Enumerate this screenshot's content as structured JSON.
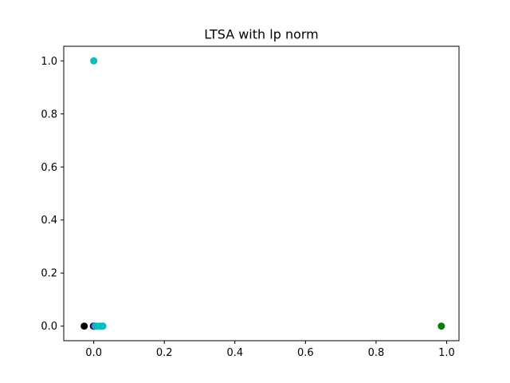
{
  "chart_data": {
    "type": "scatter",
    "title": "LTSA with lp norm",
    "xlabel": "",
    "ylabel": "",
    "xlim": [
      -0.085,
      1.035
    ],
    "ylim": [
      -0.055,
      1.055
    ],
    "x_ticks": [
      0.0,
      0.2,
      0.4,
      0.6,
      0.8,
      1.0
    ],
    "x_tick_labels": [
      "0.0",
      "0.2",
      "0.4",
      "0.6",
      "0.8",
      "1.0"
    ],
    "y_ticks": [
      0.0,
      0.2,
      0.4,
      0.6,
      0.8,
      1.0
    ],
    "y_tick_labels": [
      "0.0",
      "0.2",
      "0.4",
      "0.6",
      "0.8",
      "1.0"
    ],
    "grid": false,
    "legend": "none",
    "points": [
      {
        "x": -0.027,
        "y": 0.0,
        "color": "#000000"
      },
      {
        "x": -0.001,
        "y": 0.0,
        "color": "#000000"
      },
      {
        "x": 0.001,
        "y": 0.0,
        "color": "#0000ff"
      },
      {
        "x": 0.003,
        "y": 0.0,
        "color": "#ff0000"
      },
      {
        "x": 0.005,
        "y": 0.0,
        "color": "#00bfbf"
      },
      {
        "x": 0.008,
        "y": 0.0,
        "color": "#00bfbf"
      },
      {
        "x": 0.018,
        "y": 0.0,
        "color": "#00bfbf"
      },
      {
        "x": 0.024,
        "y": 0.0,
        "color": "#00bfbf"
      },
      {
        "x": 0.026,
        "y": 0.0,
        "color": "#00bfbf"
      },
      {
        "x": 0.0,
        "y": 1.0,
        "color": "#00bfbf"
      },
      {
        "x": 0.985,
        "y": 0.0,
        "color": "#008000"
      }
    ]
  }
}
